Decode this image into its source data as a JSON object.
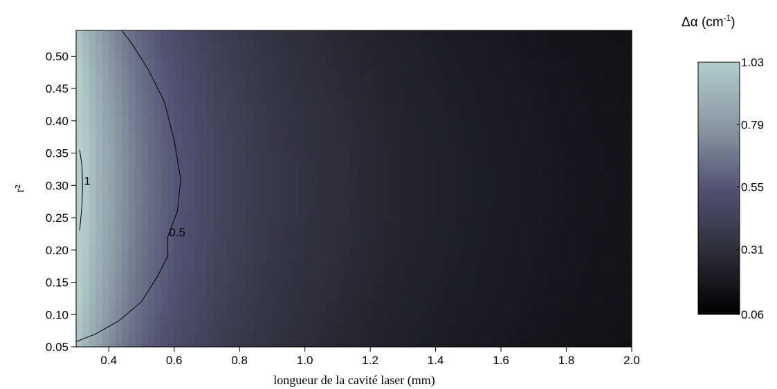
{
  "chart_data": {
    "type": "heatmap",
    "title": "",
    "xlabel": "longueur de la cavité laser (mm)",
    "ylabel": "r²",
    "xlim": [
      0.3,
      2.0
    ],
    "ylim": [
      0.05,
      0.54
    ],
    "xticks": [
      "0.4",
      "0.6",
      "0.8",
      "1.0",
      "1.2",
      "1.4",
      "1.6",
      "1.8",
      "2.0"
    ],
    "yticks": [
      "0.05",
      "0.10",
      "0.15",
      "0.20",
      "0.25",
      "0.30",
      "0.35",
      "0.40",
      "0.45",
      "0.50"
    ],
    "grid": false,
    "value_model": "delta_alpha ≈ 0.3 / L (mm) with slight dependence on r², range 0.06–1.03",
    "colorbar": {
      "title": "Δα (cm",
      "title_sup": "-1",
      "title_close": ")",
      "min": 0.06,
      "max": 1.03,
      "ticks": [
        "1.03",
        "0.79",
        "0.55",
        "0.31",
        "0.06"
      ],
      "colors": [
        "#000000",
        "#2e2d38",
        "#545274",
        "#8a9aa4",
        "#b2cdcc"
      ]
    },
    "contours": [
      {
        "level": 1,
        "label": "1",
        "points": [
          [
            0.311,
            0.355
          ],
          [
            0.318,
            0.33
          ],
          [
            0.32,
            0.3
          ],
          [
            0.318,
            0.27
          ],
          [
            0.311,
            0.23
          ]
        ]
      },
      {
        "level": 0.5,
        "label": "0.5",
        "points": [
          [
            0.44,
            0.54
          ],
          [
            0.47,
            0.52
          ],
          [
            0.52,
            0.48
          ],
          [
            0.57,
            0.43
          ],
          [
            0.6,
            0.37
          ],
          [
            0.62,
            0.31
          ],
          [
            0.61,
            0.26
          ],
          [
            0.58,
            0.22
          ],
          [
            0.58,
            0.19
          ],
          [
            0.55,
            0.16
          ],
          [
            0.5,
            0.12
          ],
          [
            0.43,
            0.09
          ],
          [
            0.36,
            0.07
          ],
          [
            0.3,
            0.058
          ]
        ]
      }
    ]
  }
}
